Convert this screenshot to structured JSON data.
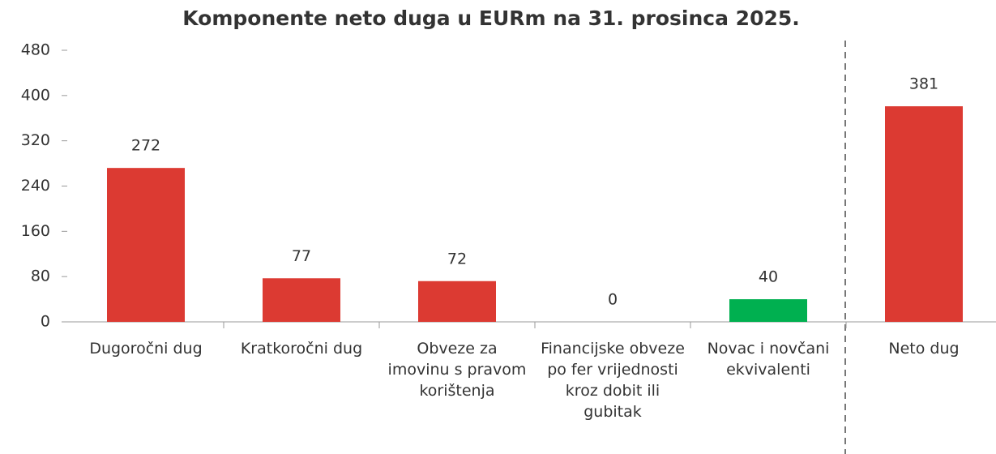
{
  "chart_data": {
    "type": "bar",
    "title": "Komponente neto duga u EURm na 31. prosinca 2025.",
    "categories": [
      "Dugoročni dug",
      "Kratkoročni dug",
      "Obveze za imovinu s pravom korištenja",
      "Financijske obveze po fer vrijednosti kroz dobit ili gubitak",
      "Novac i novčani ekvivalenti",
      "Neto dug"
    ],
    "values": [
      272,
      77,
      72,
      0,
      40,
      381
    ],
    "colors": [
      "#dc3a32",
      "#dc3a32",
      "#dc3a32",
      "#dc3a32",
      "#00b050",
      "#dc3a32"
    ],
    "ylim": [
      0,
      480
    ],
    "yticks": [
      0,
      80,
      160,
      240,
      320,
      400,
      480
    ],
    "grid": false
  }
}
